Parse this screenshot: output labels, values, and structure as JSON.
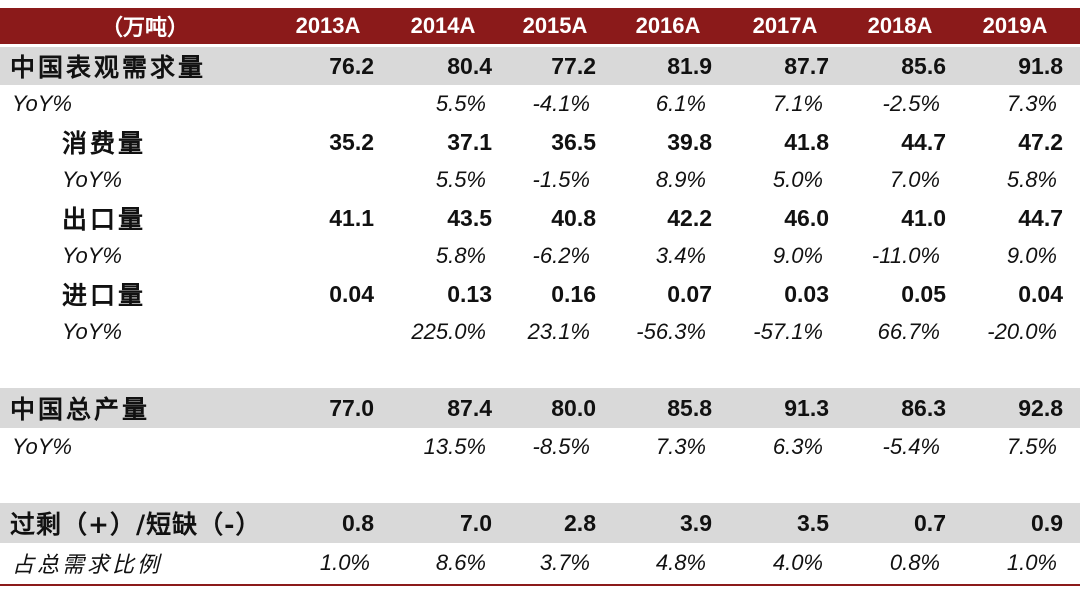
{
  "header": {
    "unit": "（万吨）",
    "years": [
      "2013A",
      "2014A",
      "2015A",
      "2016A",
      "2017A",
      "2018A",
      "2019A"
    ]
  },
  "rows": [
    {
      "label": "中国表观需求量",
      "values": [
        "76.2",
        "80.4",
        "77.2",
        "81.9",
        "87.7",
        "85.6",
        "91.8"
      ]
    },
    {
      "label": "YoY%",
      "values": [
        "",
        "5.5%",
        "-4.1%",
        "6.1%",
        "7.1%",
        "-2.5%",
        "7.3%"
      ]
    },
    {
      "label": "消费量",
      "values": [
        "35.2",
        "37.1",
        "36.5",
        "39.8",
        "41.8",
        "44.7",
        "47.2"
      ]
    },
    {
      "label": "YoY%",
      "values": [
        "",
        "5.5%",
        "-1.5%",
        "8.9%",
        "5.0%",
        "7.0%",
        "5.8%"
      ]
    },
    {
      "label": "出口量",
      "values": [
        "41.1",
        "43.5",
        "40.8",
        "42.2",
        "46.0",
        "41.0",
        "44.7"
      ]
    },
    {
      "label": "YoY%",
      "values": [
        "",
        "5.8%",
        "-6.2%",
        "3.4%",
        "9.0%",
        "-11.0%",
        "9.0%"
      ]
    },
    {
      "label": "进口量",
      "values": [
        "0.04",
        "0.13",
        "0.16",
        "0.07",
        "0.03",
        "0.05",
        "0.04"
      ]
    },
    {
      "label": "YoY%",
      "values": [
        "",
        "225.0%",
        "23.1%",
        "-56.3%",
        "-57.1%",
        "66.7%",
        "-20.0%"
      ]
    },
    {
      "label": "中国总产量",
      "values": [
        "77.0",
        "87.4",
        "80.0",
        "85.8",
        "91.3",
        "86.3",
        "92.8"
      ]
    },
    {
      "label": "YoY%",
      "values": [
        "",
        "13.5%",
        "-8.5%",
        "7.3%",
        "6.3%",
        "-5.4%",
        "7.5%"
      ]
    },
    {
      "label": "过剩（+）/短缺（-）",
      "values": [
        "0.8",
        "7.0",
        "2.8",
        "3.9",
        "3.5",
        "0.7",
        "0.9"
      ]
    },
    {
      "label": "占总需求比例",
      "values": [
        "1.0%",
        "8.6%",
        "3.7%",
        "4.8%",
        "4.0%",
        "0.8%",
        "1.0%"
      ]
    }
  ]
}
